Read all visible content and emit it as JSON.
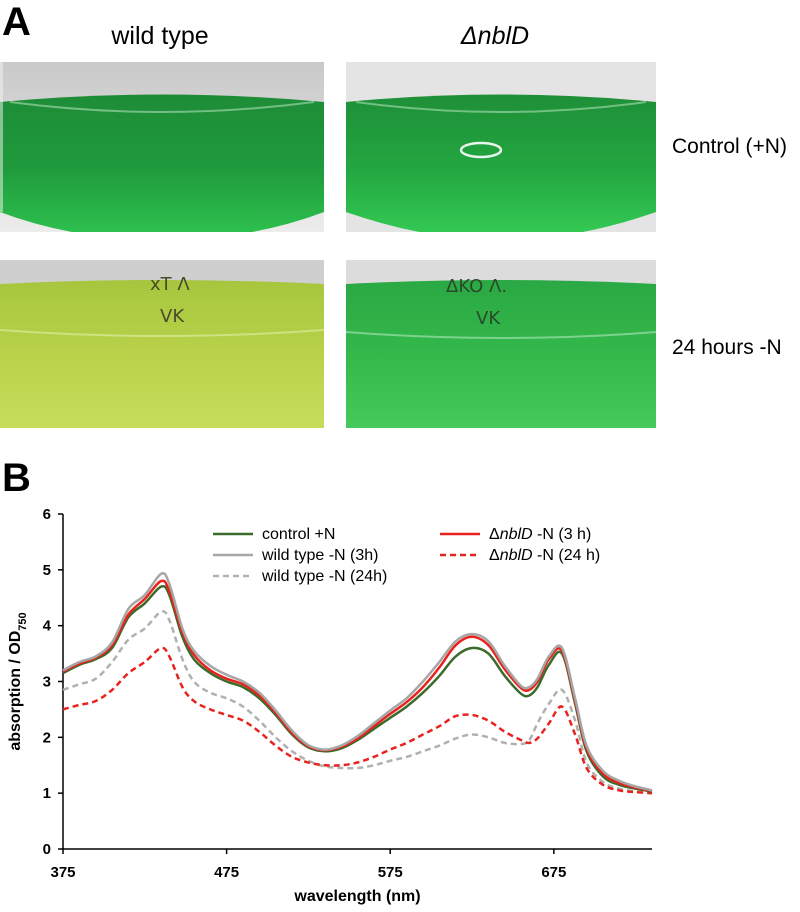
{
  "panel_a": {
    "letter": "A",
    "columns": [
      "wild type",
      "ΔnblD"
    ],
    "rows": [
      "Control (+N)",
      "24 hours -N"
    ],
    "flask_labels": {
      "wt_minusN": [
        "хT Λ",
        "VK"
      ],
      "ko_minusN": [
        "ΔKO Λ.",
        "VK"
      ]
    },
    "colors": {
      "wt_control": "#1f9a3c",
      "ko_control": "#22a640",
      "wt_minusN": "#b8d24a",
      "ko_minusN": "#34b84a"
    }
  },
  "panel_b": {
    "letter": "B"
  },
  "chart_data": {
    "type": "line",
    "xlabel": "wavelength (nm)",
    "ylabel": "absorption / OD750",
    "xlim": [
      375,
      735
    ],
    "ylim": [
      0,
      6
    ],
    "xticks": [
      375,
      475,
      575,
      675
    ],
    "yticks": [
      0,
      1,
      2,
      3,
      4,
      5,
      6
    ],
    "legend_placement": "top",
    "x": [
      375,
      385,
      395,
      405,
      415,
      425,
      435,
      440,
      448,
      455,
      465,
      475,
      485,
      495,
      505,
      515,
      525,
      535,
      545,
      555,
      565,
      575,
      585,
      595,
      605,
      615,
      625,
      635,
      645,
      655,
      660,
      665,
      672,
      680,
      688,
      695,
      705,
      715,
      725,
      735
    ],
    "series": [
      {
        "name": "control +N",
        "color": "#3a6b2a",
        "dash": false,
        "values": [
          3.15,
          3.3,
          3.4,
          3.6,
          4.15,
          4.4,
          4.7,
          4.55,
          3.8,
          3.4,
          3.15,
          3.0,
          2.9,
          2.7,
          2.4,
          2.05,
          1.82,
          1.75,
          1.8,
          1.95,
          2.15,
          2.35,
          2.55,
          2.8,
          3.1,
          3.45,
          3.6,
          3.5,
          3.1,
          2.78,
          2.75,
          2.9,
          3.3,
          3.5,
          2.6,
          1.75,
          1.3,
          1.15,
          1.08,
          1.03
        ]
      },
      {
        "name": "wild type -N (3h)",
        "color": "#a6a6a6",
        "dash": false,
        "values": [
          3.2,
          3.35,
          3.45,
          3.7,
          4.3,
          4.55,
          4.93,
          4.75,
          3.95,
          3.55,
          3.28,
          3.12,
          3.0,
          2.8,
          2.48,
          2.12,
          1.86,
          1.78,
          1.85,
          2.02,
          2.25,
          2.48,
          2.7,
          3.0,
          3.35,
          3.72,
          3.85,
          3.72,
          3.28,
          2.92,
          2.9,
          3.05,
          3.45,
          3.6,
          2.7,
          1.85,
          1.4,
          1.22,
          1.12,
          1.05
        ]
      },
      {
        "name": "wild type -N (24h)",
        "color": "#b0b0b0",
        "dash": true,
        "values": [
          2.85,
          2.95,
          3.05,
          3.35,
          3.75,
          3.95,
          4.25,
          4.1,
          3.4,
          3.0,
          2.8,
          2.7,
          2.55,
          2.3,
          2.0,
          1.75,
          1.58,
          1.48,
          1.45,
          1.45,
          1.5,
          1.58,
          1.65,
          1.75,
          1.85,
          1.98,
          2.05,
          2.0,
          1.9,
          1.88,
          1.95,
          2.25,
          2.6,
          2.85,
          2.3,
          1.55,
          1.2,
          1.08,
          1.03,
          1.0
        ]
      },
      {
        "name": "ΔnblD -N (3 h)",
        "color": "#e8231f",
        "dash": false,
        "values": [
          3.18,
          3.32,
          3.43,
          3.65,
          4.2,
          4.48,
          4.8,
          4.62,
          3.88,
          3.48,
          3.2,
          3.05,
          2.95,
          2.75,
          2.44,
          2.08,
          1.84,
          1.77,
          1.83,
          1.98,
          2.2,
          2.42,
          2.63,
          2.9,
          3.25,
          3.65,
          3.8,
          3.65,
          3.22,
          2.88,
          2.85,
          3.0,
          3.4,
          3.55,
          2.65,
          1.8,
          1.35,
          1.18,
          1.1,
          1.04
        ]
      },
      {
        "name": "ΔnblD -N (24 h)",
        "color": "#e8231f",
        "dash": true,
        "values": [
          2.5,
          2.58,
          2.65,
          2.85,
          3.15,
          3.35,
          3.6,
          3.45,
          2.9,
          2.65,
          2.5,
          2.4,
          2.3,
          2.1,
          1.85,
          1.65,
          1.55,
          1.5,
          1.5,
          1.55,
          1.65,
          1.78,
          1.9,
          2.05,
          2.2,
          2.38,
          2.4,
          2.3,
          2.1,
          1.95,
          1.9,
          1.98,
          2.25,
          2.55,
          2.05,
          1.45,
          1.15,
          1.05,
          1.02,
          1.0
        ]
      }
    ],
    "legend": {
      "col1": [
        {
          "text": "control +N",
          "series": 0
        },
        {
          "text": "wild type -N (3h)",
          "series": 1
        },
        {
          "text": "wild type -N (24h)",
          "series": 2
        }
      ],
      "col2": [
        {
          "prefix": "Δ",
          "italic": "nblD",
          "suffix": "  -N (3 h)",
          "series": 3
        },
        {
          "prefix": "Δ",
          "italic": "nblD",
          "suffix": "  -N (24 h)",
          "series": 4
        }
      ]
    },
    "ylabel_parts": {
      "main": "absorption / OD",
      "sub": "750"
    }
  }
}
